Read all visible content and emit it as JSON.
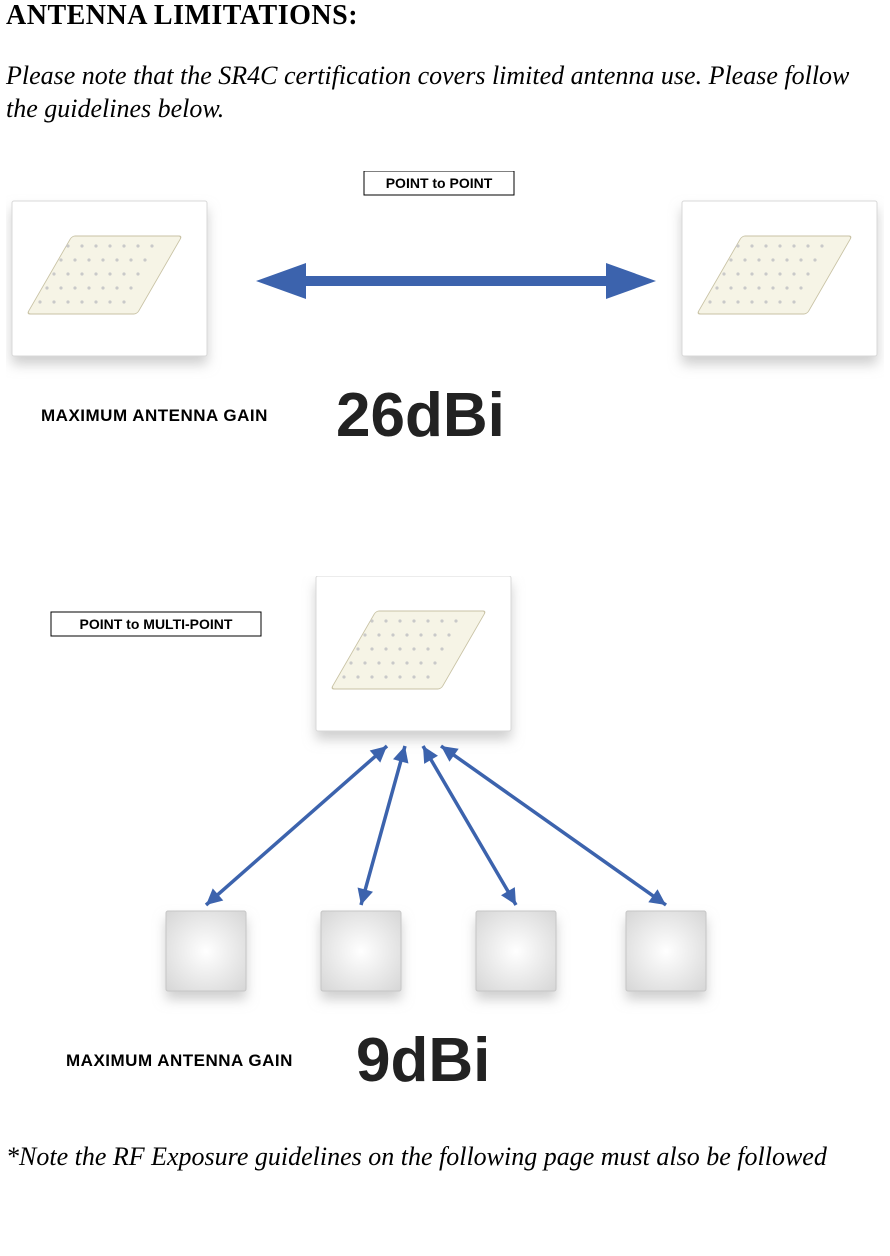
{
  "title": "ANTENNA LIMITATIONS:",
  "intro": "Please note that the SR4C certification covers limited antenna use. Please follow the guidelines below.",
  "footnote": "*Note the RF Exposure guidelines on the following page must also be followed",
  "ptp": {
    "label": "POINT to POINT",
    "gain_label": "MAXIMUM ANTENNA GAIN",
    "gain_value": "26dBi",
    "arrow_color": "#3c63ad",
    "card_border": "#d0d0d0",
    "card_bg": "#ffffff",
    "card_inner": "#f8f6e8",
    "grid_dot": "#c9c9c9",
    "shadow": "#cccccc",
    "gain_text_color": "#222222"
  },
  "ptmp": {
    "label": "POINT to MULTI-POINT",
    "gain_label": "MAXIMUM ANTENNA GAIN",
    "gain_value": "9dBi",
    "arrow_color": "#3c63ad",
    "card_border": "#d0d0d0",
    "card_bg": "#ffffff",
    "card_inner": "#f8f6e8",
    "grid_dot": "#c9c9c9",
    "node_fill_top": "#ffffff",
    "node_fill_bot": "#dedede",
    "node_border": "#c6c6c6",
    "shadow": "#cccccc",
    "gain_text_color": "#222222"
  }
}
